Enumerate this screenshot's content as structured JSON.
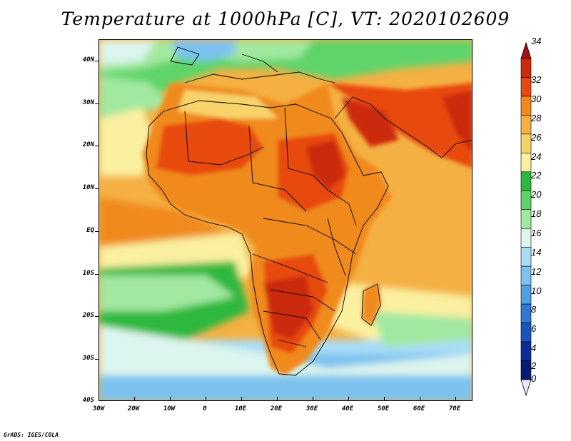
{
  "title": "Temperature at 1000hPa [C], VT: 2020102609",
  "credit": "GrADS: IGES/COLA",
  "map": {
    "region": "Africa, Arabian Peninsula, Southern Europe, Indian Ocean",
    "lon_range": [
      -30,
      75
    ],
    "lat_range": [
      -40,
      45
    ],
    "lat_labels": [
      "40N",
      "30N",
      "20N",
      "10N",
      "EQ",
      "10S",
      "20S",
      "30S",
      "40S"
    ],
    "lon_labels": [
      "30W",
      "20W",
      "10W",
      "0",
      "10E",
      "20E",
      "30E",
      "40E",
      "50E",
      "60E",
      "70E"
    ]
  },
  "colorbar": {
    "labels": [
      "34",
      "32",
      "30",
      "28",
      "26",
      "24",
      "22",
      "20",
      "18",
      "16",
      "14",
      "12",
      "10",
      "8",
      "6",
      "4",
      "2",
      "0"
    ],
    "colors": [
      "#a50f15",
      "#cc2a0f",
      "#e8480f",
      "#f08a1e",
      "#f4b042",
      "#f7d36a",
      "#faf0a0",
      "#2db83d",
      "#5fd46a",
      "#a2e8a0",
      "#dcf5ee",
      "#a9dcf5",
      "#7cc2ef",
      "#4f9fe3",
      "#2f78d3",
      "#1a55bf",
      "#0d2d9c",
      "#081a72",
      "#e8e8f8"
    ]
  }
}
